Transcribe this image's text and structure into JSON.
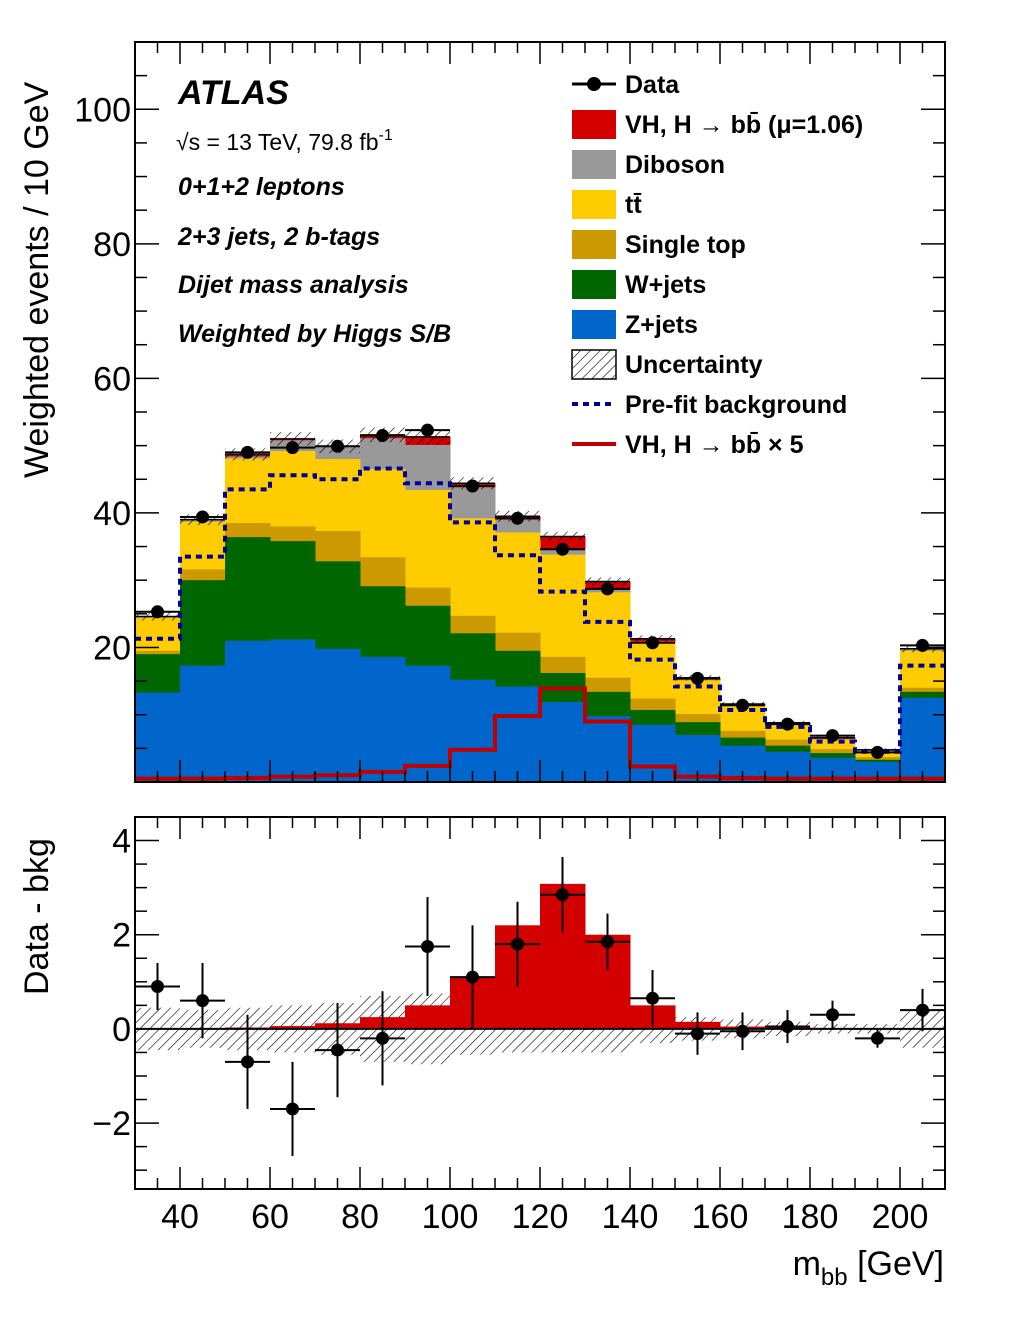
{
  "chart_data": [
    {
      "type": "bar",
      "subtype": "stacked-histogram",
      "title": "",
      "xlabel": "m_bb [GeV]",
      "ylabel": "Weighted events / 10 GeV",
      "xlim": [
        30,
        210
      ],
      "ylim": [
        0,
        110
      ],
      "x_ticks": [
        40,
        60,
        80,
        100,
        120,
        140,
        160,
        180,
        200
      ],
      "y_ticks": [
        20,
        40,
        60,
        80,
        100
      ],
      "y_tick_labels": [
        "20",
        "40",
        "60",
        "80",
        "100"
      ],
      "bin_edges": [
        30,
        40,
        50,
        60,
        70,
        80,
        90,
        100,
        110,
        120,
        130,
        140,
        150,
        160,
        170,
        180,
        190,
        200,
        210
      ],
      "annotations": {
        "experiment": "ATLAS",
        "energy_prefix": "√s = 13 TeV, 79.8 fb",
        "energy_sup": "-1",
        "lines": [
          "0+1+2 leptons",
          "2+3 jets, 2 b-tags",
          "Dijet mass analysis",
          "Weighted by Higgs S/B"
        ]
      },
      "legend_position": "top-right",
      "legend": [
        {
          "key": "data",
          "label": "Data",
          "style": "marker",
          "color": "#000000"
        },
        {
          "key": "signal",
          "label": "VH, H → bb̄ (μ=1.06)",
          "style": "fill",
          "color": "#d40000"
        },
        {
          "key": "diboson",
          "label": "Diboson",
          "style": "fill",
          "color": "#999999"
        },
        {
          "key": "ttbar",
          "label": "tt̄",
          "style": "fill",
          "color": "#ffcc00"
        },
        {
          "key": "singletop",
          "label": "Single top",
          "style": "fill",
          "color": "#cc9900"
        },
        {
          "key": "wjets",
          "label": "W+jets",
          "style": "fill",
          "color": "#006600"
        },
        {
          "key": "zjets",
          "label": "Z+jets",
          "style": "fill",
          "color": "#0066cc"
        },
        {
          "key": "uncertainty",
          "label": "Uncertainty",
          "style": "hatch",
          "color": "#000000"
        },
        {
          "key": "prefit",
          "label": "Pre-fit background",
          "style": "dotted-line",
          "color": "#000099"
        },
        {
          "key": "signal_x5",
          "label": "VH, H → bb̄ × 5",
          "style": "line",
          "color": "#c00000"
        }
      ],
      "stack_cumulative": {
        "zjets": [
          13.3,
          17.3,
          21.0,
          21.2,
          19.8,
          18.6,
          17.3,
          15.2,
          14.2,
          11.9,
          9.8,
          8.5,
          7.0,
          5.4,
          4.5,
          3.6,
          3.0,
          12.5
        ],
        "wjets": [
          19.0,
          30.0,
          36.4,
          35.8,
          32.8,
          29.1,
          26.2,
          22.1,
          19.5,
          16.2,
          13.4,
          10.7,
          8.9,
          6.6,
          5.4,
          4.3,
          3.3,
          13.4
        ],
        "singletop": [
          19.5,
          31.6,
          38.5,
          38.0,
          37.3,
          33.4,
          28.9,
          24.7,
          22.2,
          18.6,
          15.5,
          12.4,
          10.1,
          7.6,
          6.3,
          4.9,
          3.7,
          14.0
        ],
        "ttbar": [
          24.4,
          38.7,
          48.1,
          49.2,
          48.0,
          46.5,
          43.4,
          39.2,
          37.1,
          33.8,
          28.2,
          20.7,
          15.1,
          11.3,
          8.5,
          6.3,
          4.6,
          19.5
        ],
        "diboson": [
          24.6,
          38.9,
          48.4,
          50.8,
          49.8,
          51.1,
          50.1,
          43.8,
          39.0,
          34.7,
          28.8,
          20.9,
          15.2,
          11.5,
          8.6,
          6.4,
          4.8,
          19.7
        ],
        "signal": [
          24.6,
          39.0,
          48.7,
          51.0,
          49.9,
          51.6,
          51.3,
          44.4,
          39.5,
          36.5,
          29.8,
          21.3,
          15.5,
          11.6,
          8.8,
          6.6,
          4.8,
          19.8
        ]
      },
      "uncertainty_halfwidth": [
        0.6,
        0.8,
        0.9,
        1.0,
        1.0,
        1.1,
        1.1,
        0.9,
        0.8,
        0.7,
        0.6,
        0.5,
        0.4,
        0.3,
        0.3,
        0.2,
        0.2,
        0.5
      ],
      "prefit_background": [
        21.3,
        33.5,
        43.5,
        45.6,
        45.0,
        46.6,
        44.4,
        38.6,
        33.7,
        28.3,
        23.8,
        18.2,
        14.2,
        10.7,
        8.2,
        6.0,
        4.5,
        17.3
      ],
      "signal_x5": [
        0.5,
        0.5,
        0.6,
        0.8,
        1.0,
        1.5,
        2.4,
        4.8,
        9.8,
        13.9,
        9.0,
        2.3,
        0.8,
        0.6,
        0.5,
        0.5,
        0.5,
        0.5
      ],
      "data": {
        "x": [
          35,
          45,
          55,
          65,
          75,
          85,
          95,
          105,
          115,
          125,
          135,
          145,
          155,
          165,
          175,
          185,
          195,
          205
        ],
        "y": [
          25.3,
          39.4,
          49.0,
          49.7,
          49.9,
          51.5,
          52.3,
          44.0,
          39.2,
          34.6,
          28.7,
          20.7,
          15.4,
          11.4,
          8.6,
          6.9,
          4.4,
          20.3
        ]
      }
    },
    {
      "type": "bar",
      "subtype": "residual-panel",
      "xlabel": "m_bb [GeV]",
      "xlabel_main": "m",
      "xlabel_sub": "bb",
      "xlabel_unit": " [GeV]",
      "ylabel": "Data - bkg",
      "xlim": [
        30,
        210
      ],
      "ylim": [
        -3.4,
        4.5
      ],
      "x_ticks": [
        40,
        60,
        80,
        100,
        120,
        140,
        160,
        180,
        200
      ],
      "x_tick_labels": [
        "40",
        "60",
        "80",
        "100",
        "120",
        "140",
        "160",
        "180",
        "200"
      ],
      "y_ticks": [
        -2,
        0,
        2,
        4
      ],
      "y_tick_labels": [
        "−2",
        "0",
        "2",
        "4"
      ],
      "signal": [
        0.0,
        0.01,
        0.03,
        0.06,
        0.12,
        0.25,
        0.5,
        1.1,
        2.2,
        3.08,
        2.0,
        0.5,
        0.15,
        0.05,
        0.03,
        0.02,
        0.01,
        0.01
      ],
      "uncertainty_halfwidth": [
        0.45,
        0.4,
        0.45,
        0.5,
        0.55,
        0.7,
        0.75,
        0.55,
        0.5,
        0.5,
        0.5,
        0.3,
        0.25,
        0.2,
        0.15,
        0.1,
        0.1,
        0.4
      ],
      "data": {
        "x": [
          35,
          45,
          55,
          65,
          75,
          85,
          95,
          105,
          115,
          125,
          135,
          145,
          155,
          165,
          175,
          185,
          195,
          205
        ],
        "y": [
          0.9,
          0.6,
          -0.7,
          -1.7,
          -0.45,
          -0.2,
          1.75,
          1.1,
          1.8,
          2.85,
          1.85,
          0.65,
          -0.1,
          -0.05,
          0.05,
          0.3,
          -0.2,
          0.4
        ],
        "yerr": [
          0.5,
          0.8,
          1.0,
          1.0,
          1.0,
          1.0,
          1.05,
          1.1,
          0.9,
          0.8,
          0.6,
          0.6,
          0.45,
          0.4,
          0.35,
          0.3,
          0.2,
          0.45
        ]
      }
    }
  ]
}
